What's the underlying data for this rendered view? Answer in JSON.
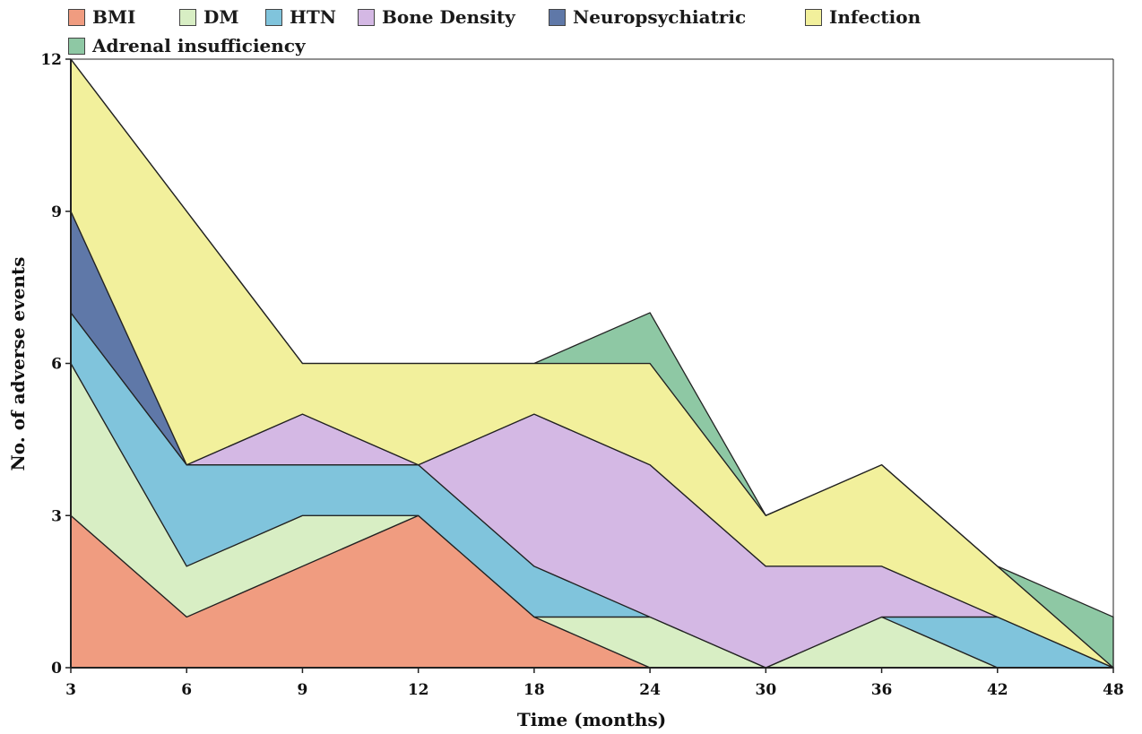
{
  "chart_data": {
    "type": "area",
    "stacked": true,
    "categories": [
      "3",
      "6",
      "9",
      "12",
      "18",
      "24",
      "30",
      "36",
      "42",
      "48"
    ],
    "series": [
      {
        "name": "BMI",
        "color": "#f09c80",
        "values": [
          3,
          1,
          2,
          3,
          1,
          0,
          0,
          0,
          0,
          0
        ]
      },
      {
        "name": "DM",
        "color": "#d8eec4",
        "values": [
          3,
          1,
          1,
          0,
          0,
          1,
          0,
          1,
          0,
          0
        ]
      },
      {
        "name": "HTN",
        "color": "#80c4dc",
        "values": [
          1,
          2,
          1,
          1,
          1,
          0,
          0,
          0,
          1,
          0
        ]
      },
      {
        "name": "Bone Density",
        "color": "#d4b8e4",
        "values": [
          0,
          0,
          1,
          0,
          3,
          3,
          2,
          1,
          0,
          0
        ]
      },
      {
        "name": "Neuropsychiatric",
        "color": "#5f78a8",
        "values": [
          2,
          0,
          0,
          0,
          0,
          0,
          0,
          0,
          0,
          0
        ]
      },
      {
        "name": "Infection",
        "color": "#f2f09c",
        "values": [
          3,
          5,
          1,
          2,
          1,
          2,
          1,
          2,
          1,
          0
        ]
      },
      {
        "name": "Adrenal insufficiency",
        "color": "#8ec8a4",
        "values": [
          0,
          0,
          0,
          0,
          0,
          1,
          0,
          0,
          0,
          1
        ]
      }
    ],
    "y_ticks": [
      "0",
      "3",
      "6",
      "9",
      "12"
    ],
    "ylim": [
      0,
      12
    ],
    "xlabel": "Time (months)",
    "ylabel": "No. of adverse events",
    "grid": false,
    "legend_position": "top"
  }
}
